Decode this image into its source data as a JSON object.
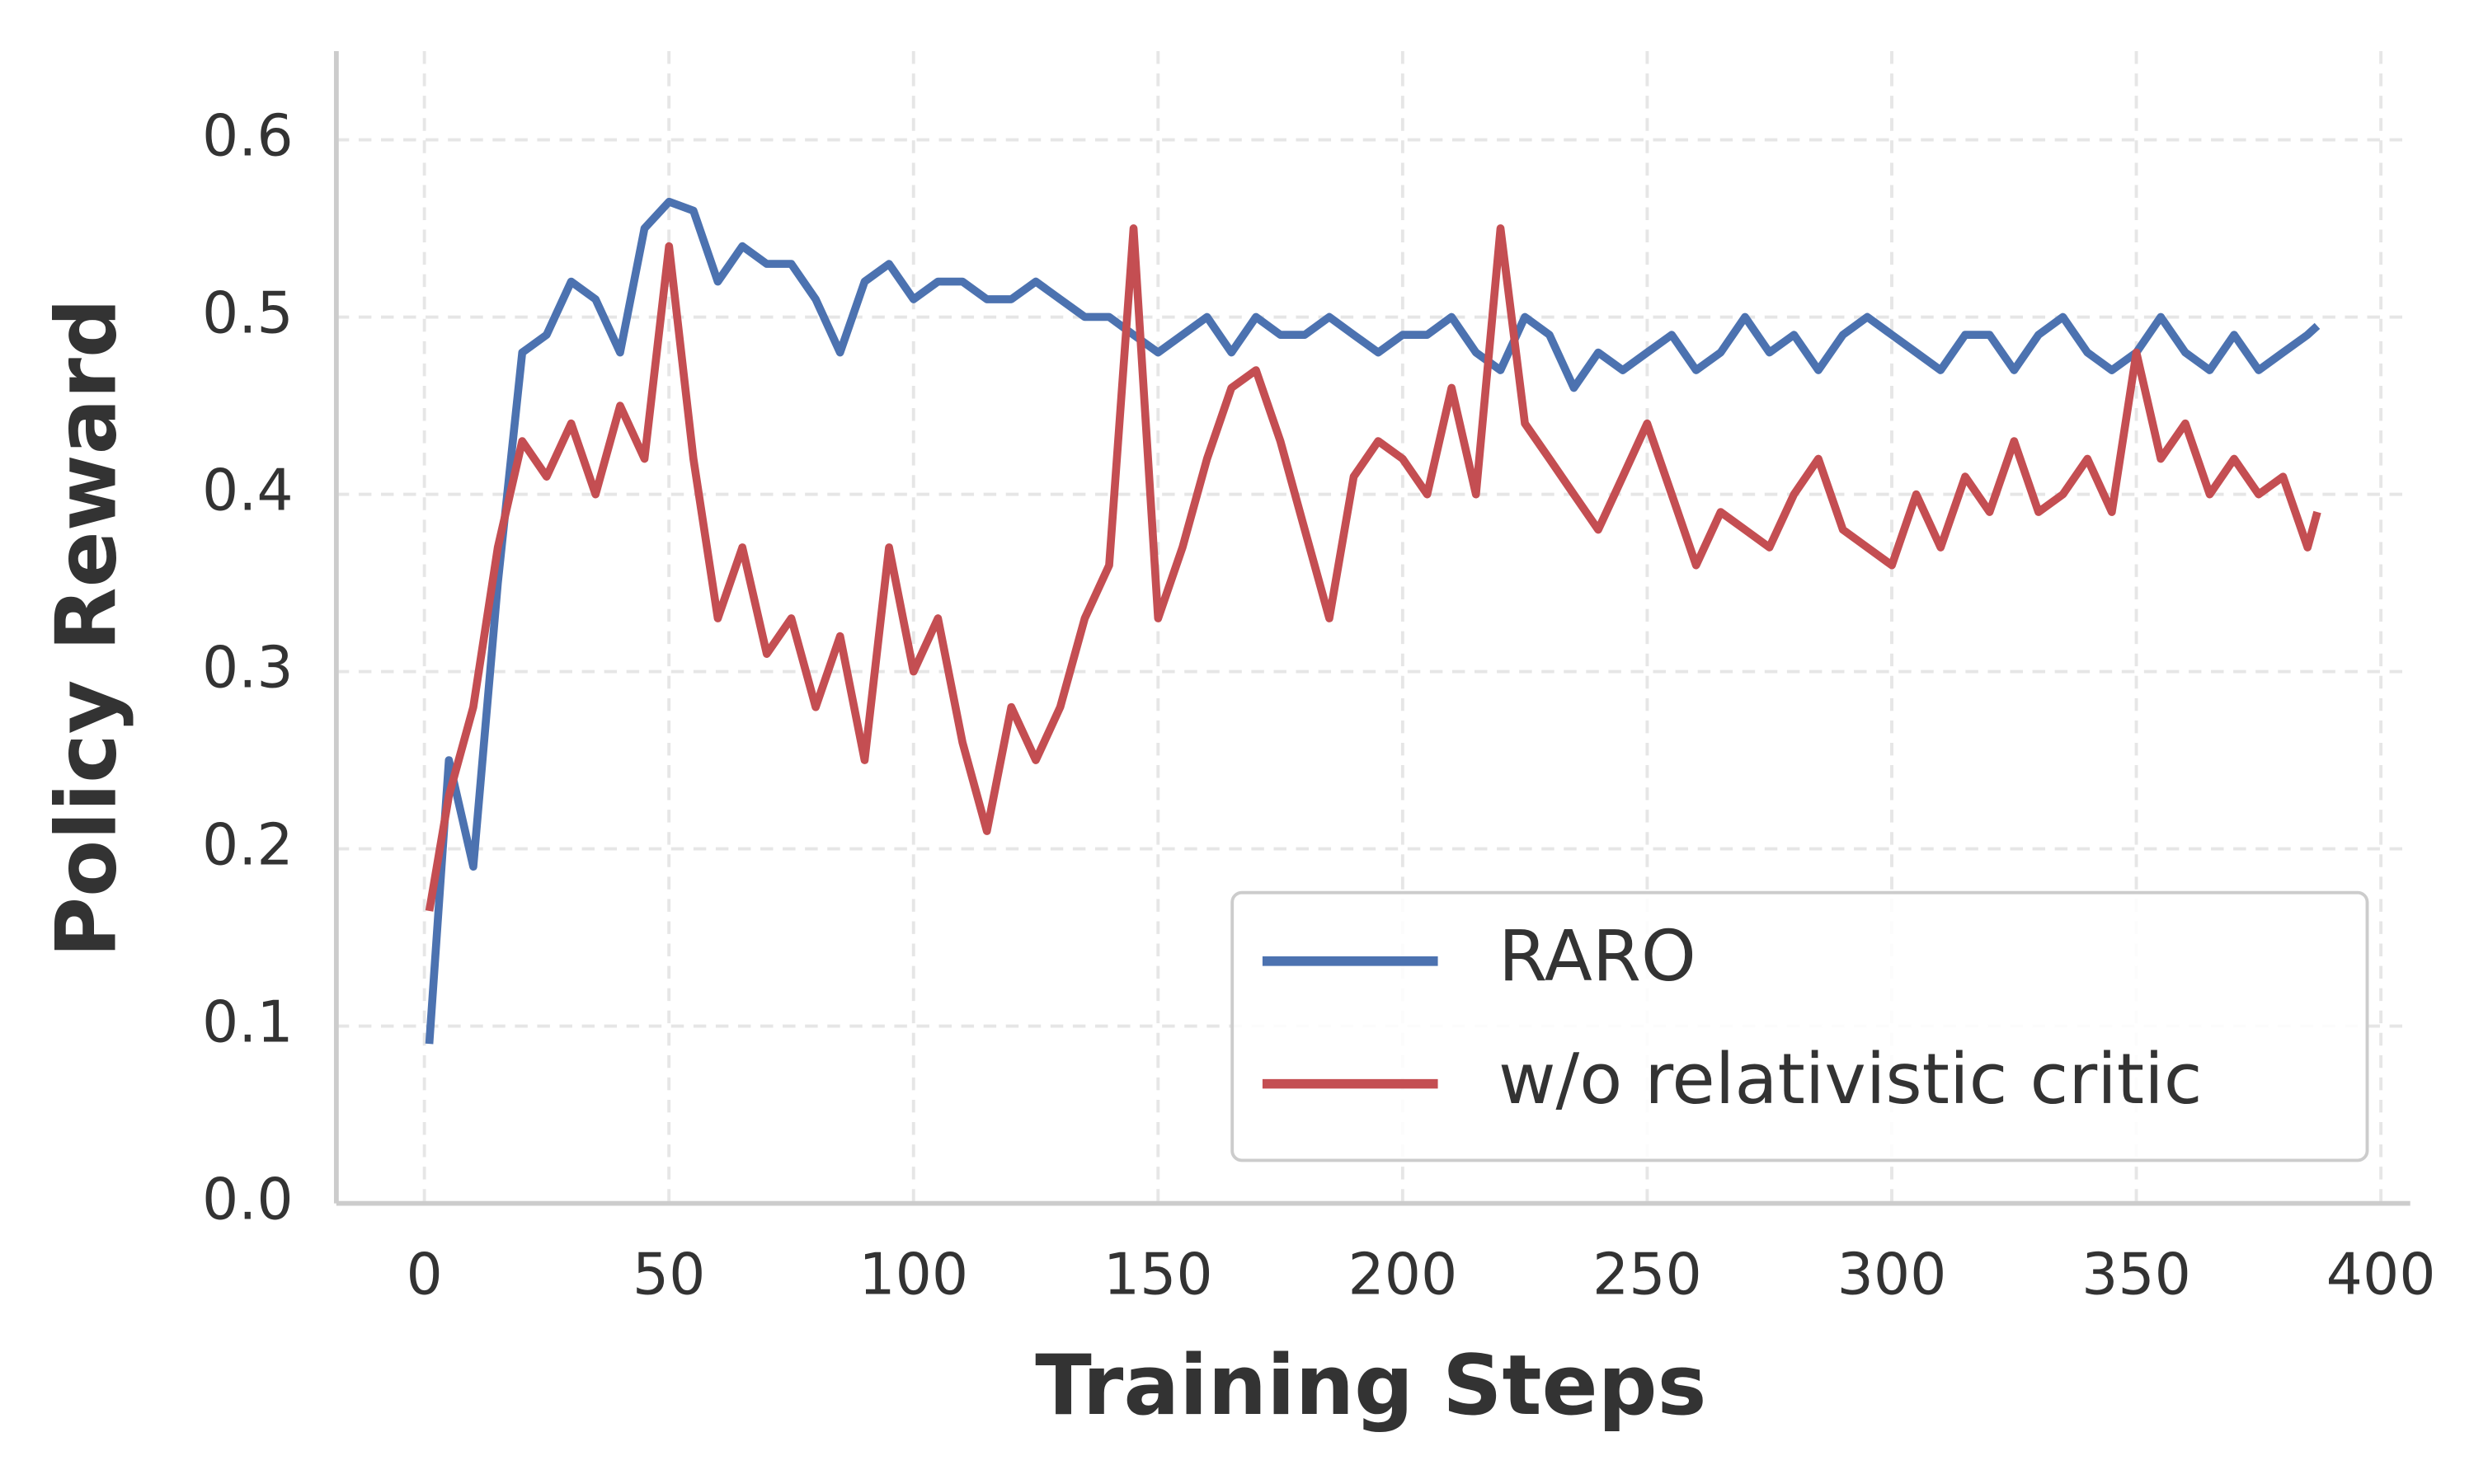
{
  "chart_data": {
    "type": "line",
    "xlabel": "Training Steps",
    "ylabel": "Policy Reward",
    "x": [
      1,
      5,
      10,
      15,
      20,
      25,
      30,
      35,
      40,
      45,
      50,
      55,
      60,
      65,
      70,
      75,
      80,
      85,
      90,
      95,
      100,
      105,
      110,
      115,
      120,
      125,
      130,
      135,
      140,
      145,
      150,
      155,
      160,
      165,
      170,
      175,
      180,
      185,
      190,
      195,
      200,
      205,
      210,
      215,
      220,
      225,
      230,
      235,
      240,
      245,
      250,
      255,
      260,
      265,
      270,
      275,
      280,
      285,
      290,
      295,
      300,
      305,
      310,
      315,
      320,
      325,
      330,
      335,
      340,
      345,
      350,
      355,
      360,
      365,
      370,
      375,
      380,
      385,
      387
    ],
    "series": [
      {
        "name": "RARO",
        "color": "#4c72b0",
        "values": [
          0.09,
          0.25,
          0.19,
          0.35,
          0.48,
          0.49,
          0.52,
          0.51,
          0.48,
          0.55,
          0.565,
          0.56,
          0.52,
          0.54,
          0.53,
          0.53,
          0.51,
          0.48,
          0.52,
          0.53,
          0.51,
          0.52,
          0.52,
          0.51,
          0.51,
          0.52,
          0.51,
          0.5,
          0.5,
          0.49,
          0.48,
          0.49,
          0.5,
          0.48,
          0.5,
          0.49,
          0.49,
          0.5,
          0.49,
          0.48,
          0.49,
          0.49,
          0.5,
          0.48,
          0.47,
          0.5,
          0.49,
          0.46,
          0.48,
          0.47,
          0.48,
          0.49,
          0.47,
          0.48,
          0.5,
          0.48,
          0.49,
          0.47,
          0.49,
          0.5,
          0.49,
          0.48,
          0.47,
          0.49,
          0.49,
          0.47,
          0.49,
          0.5,
          0.48,
          0.47,
          0.48,
          0.5,
          0.48,
          0.47,
          0.49,
          0.47,
          0.48,
          0.49,
          0.495
        ]
      },
      {
        "name": "w/o relativistic critic",
        "color": "#c44e52",
        "values": [
          0.165,
          0.23,
          0.28,
          0.37,
          0.43,
          0.41,
          0.44,
          0.4,
          0.45,
          0.42,
          0.54,
          0.42,
          0.33,
          0.37,
          0.31,
          0.33,
          0.28,
          0.32,
          0.25,
          0.37,
          0.3,
          0.33,
          0.26,
          0.21,
          0.28,
          0.25,
          0.28,
          0.33,
          0.36,
          0.55,
          0.33,
          0.37,
          0.42,
          0.46,
          0.47,
          0.43,
          0.38,
          0.33,
          0.41,
          0.43,
          0.42,
          0.4,
          0.46,
          0.4,
          0.55,
          0.44,
          0.42,
          0.4,
          0.38,
          0.41,
          0.44,
          0.4,
          0.36,
          0.39,
          0.38,
          0.37,
          0.4,
          0.42,
          0.38,
          0.37,
          0.36,
          0.4,
          0.37,
          0.41,
          0.39,
          0.43,
          0.39,
          0.4,
          0.42,
          0.39,
          0.48,
          0.42,
          0.44,
          0.4,
          0.42,
          0.4,
          0.41,
          0.37,
          0.39
        ]
      }
    ],
    "xlim": [
      -18,
      406
    ],
    "ylim": [
      0,
      0.65
    ],
    "xticks": [
      0,
      50,
      100,
      150,
      200,
      250,
      300,
      350,
      400
    ],
    "yticks": [
      {
        "value": 0,
        "label": "0.0"
      },
      0.1,
      0.2,
      0.3,
      0.4,
      0.5,
      0.6
    ],
    "grid": true,
    "legend": "lower right"
  }
}
